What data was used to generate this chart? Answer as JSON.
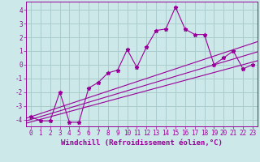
{
  "xlabel": "Windchill (Refroidissement éolien,°C)",
  "x": [
    0,
    1,
    2,
    3,
    4,
    5,
    6,
    7,
    8,
    9,
    10,
    11,
    12,
    13,
    14,
    15,
    16,
    17,
    18,
    19,
    20,
    21,
    22,
    23
  ],
  "y_line": [
    -3.8,
    -4.1,
    -4.1,
    -2.0,
    -4.2,
    -4.2,
    -1.7,
    -1.3,
    -0.6,
    -0.4,
    1.1,
    -0.2,
    1.3,
    2.5,
    2.6,
    4.2,
    2.6,
    2.2,
    2.2,
    0.0,
    0.5,
    1.0,
    -0.3,
    0.0
  ],
  "line_color": "#990099",
  "marker": "*",
  "marker_size": 3.5,
  "bg_color": "#cce8e8",
  "grid_color": "#aacccc",
  "ylim": [
    -4.5,
    4.6
  ],
  "xlim": [
    -0.5,
    23.5
  ],
  "yticks": [
    -4,
    -3,
    -2,
    -1,
    0,
    1,
    2,
    3,
    4
  ],
  "xticks": [
    0,
    1,
    2,
    3,
    4,
    5,
    6,
    7,
    8,
    9,
    10,
    11,
    12,
    13,
    14,
    15,
    16,
    17,
    18,
    19,
    20,
    21,
    22,
    23
  ],
  "regression_lines": [
    {
      "slope": 0.233,
      "intercept": -3.8
    },
    {
      "slope": 0.21,
      "intercept": -4.0
    },
    {
      "slope": 0.19,
      "intercept": -4.18
    }
  ],
  "tick_fontsize": 5.5,
  "label_fontsize": 6.5
}
